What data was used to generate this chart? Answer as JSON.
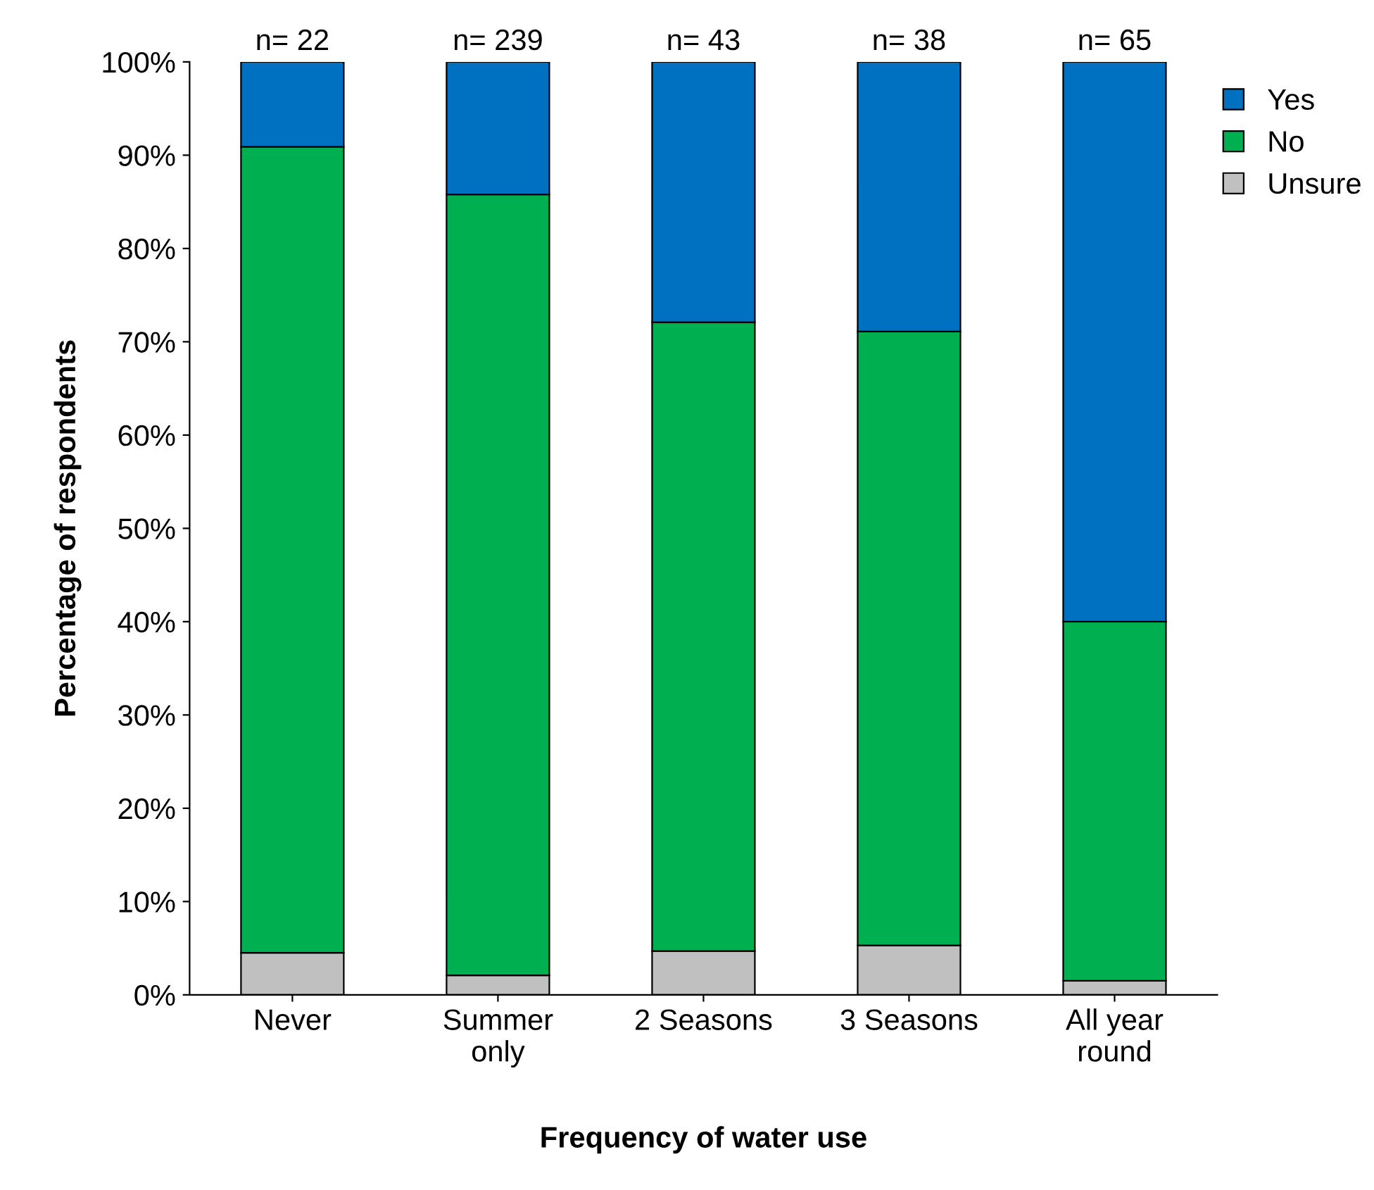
{
  "chart_data": {
    "type": "bar",
    "stacked": true,
    "xlabel": "Frequency of water use",
    "ylabel": "Percentage of respondents",
    "categories": [
      "Never",
      "Summer\nonly",
      "2 Seasons",
      "3 Seasons",
      "All year\nround"
    ],
    "series": [
      {
        "name": "Unsure",
        "color": "#c0c0c0",
        "values": [
          4.5,
          2.1,
          4.7,
          5.3,
          1.5
        ]
      },
      {
        "name": "No",
        "color": "#00b050",
        "values": [
          86.4,
          83.7,
          67.4,
          65.8,
          38.5
        ]
      },
      {
        "name": "Yes",
        "color": "#0070c0",
        "values": [
          9.1,
          14.2,
          27.9,
          28.9,
          60.0
        ]
      }
    ],
    "ylim": [
      0,
      100
    ],
    "yticks": [
      {
        "value": 0,
        "label": "0%"
      },
      {
        "value": 10,
        "label": "10%"
      },
      {
        "value": 20,
        "label": "20%"
      },
      {
        "value": 30,
        "label": "30%"
      },
      {
        "value": 40,
        "label": "40%"
      },
      {
        "value": 50,
        "label": "50%"
      },
      {
        "value": 60,
        "label": "60%"
      },
      {
        "value": 70,
        "label": "70%"
      },
      {
        "value": 80,
        "label": "80%"
      },
      {
        "value": 90,
        "label": "90%"
      },
      {
        "value": 100,
        "label": "100%"
      }
    ],
    "annotations": [
      {
        "text": "n= 22",
        "x": "Never",
        "y": 100
      },
      {
        "text": "n= 239",
        "x": "Summer\nonly",
        "y": 100
      },
      {
        "text": "n= 43",
        "x": "2 Seasons",
        "y": 100
      },
      {
        "text": "n= 38",
        "x": "3 Seasons",
        "y": 100
      },
      {
        "text": "n= 65",
        "x": "All year\nround",
        "y": 100
      }
    ],
    "grid": false,
    "legend": "top right"
  }
}
